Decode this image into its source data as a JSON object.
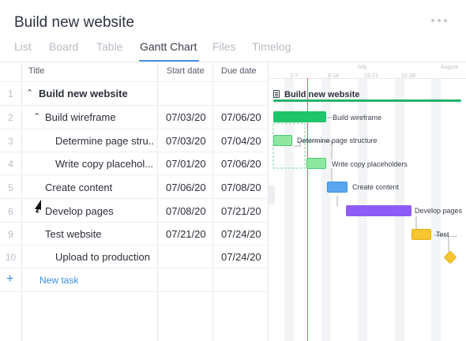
{
  "project": {
    "title": "Build new website"
  },
  "tabs": [
    {
      "label": "List"
    },
    {
      "label": "Board"
    },
    {
      "label": "Table"
    },
    {
      "label": "Gantt Chart",
      "active": true
    },
    {
      "label": "Files"
    },
    {
      "label": "Timelog"
    }
  ],
  "columns": {
    "title": "Title",
    "start": "Start date",
    "due": "Due date"
  },
  "rows": [
    {
      "num": "1",
      "title": "Build new website",
      "start": "",
      "due": ""
    },
    {
      "num": "2",
      "title": "Build wireframe",
      "start": "07/03/20",
      "due": "07/06/20"
    },
    {
      "num": "3",
      "title": "Determine page stru...",
      "start": "07/03/20",
      "due": "07/04/20"
    },
    {
      "num": "4",
      "title": "Write copy placehol...",
      "start": "07/01/20",
      "due": "07/06/20"
    },
    {
      "num": "5",
      "title": "Create content",
      "start": "07/06/20",
      "due": "07/08/20"
    },
    {
      "num": "6",
      "title": "Develop pages",
      "start": "07/08/20",
      "due": "07/21/20"
    },
    {
      "num": "9",
      "title": "Test website",
      "start": "07/21/20",
      "due": "07/24/20"
    },
    {
      "num": "10",
      "title": "Upload to production",
      "start": "",
      "due": "07/24/20"
    }
  ],
  "new_task": {
    "label": "New task",
    "icon": "plus-icon"
  },
  "gantt": {
    "months": [
      "July",
      "August"
    ],
    "weeks": [
      "1-7",
      "8-14",
      "15-21",
      "22-28"
    ],
    "project_label": "Build new website",
    "bars": [
      {
        "label": "Build wireframe"
      },
      {
        "label": "Determine page structure"
      },
      {
        "label": "Write copy placeholders"
      },
      {
        "label": "Create content"
      },
      {
        "label": "Develop pages"
      },
      {
        "label": "Test ..."
      }
    ]
  },
  "colors": {
    "accent": "#4a90e2",
    "project_bar": "#20b46a",
    "wireframe_bar": "#1fc46b",
    "subtask_bar": "#8ee79e",
    "content_bar": "#5aa6ee",
    "develop_bar": "#8d5cf6",
    "test_bar": "#f7c531",
    "milestone": "#f7c531",
    "today_line": "#e05c6a"
  }
}
